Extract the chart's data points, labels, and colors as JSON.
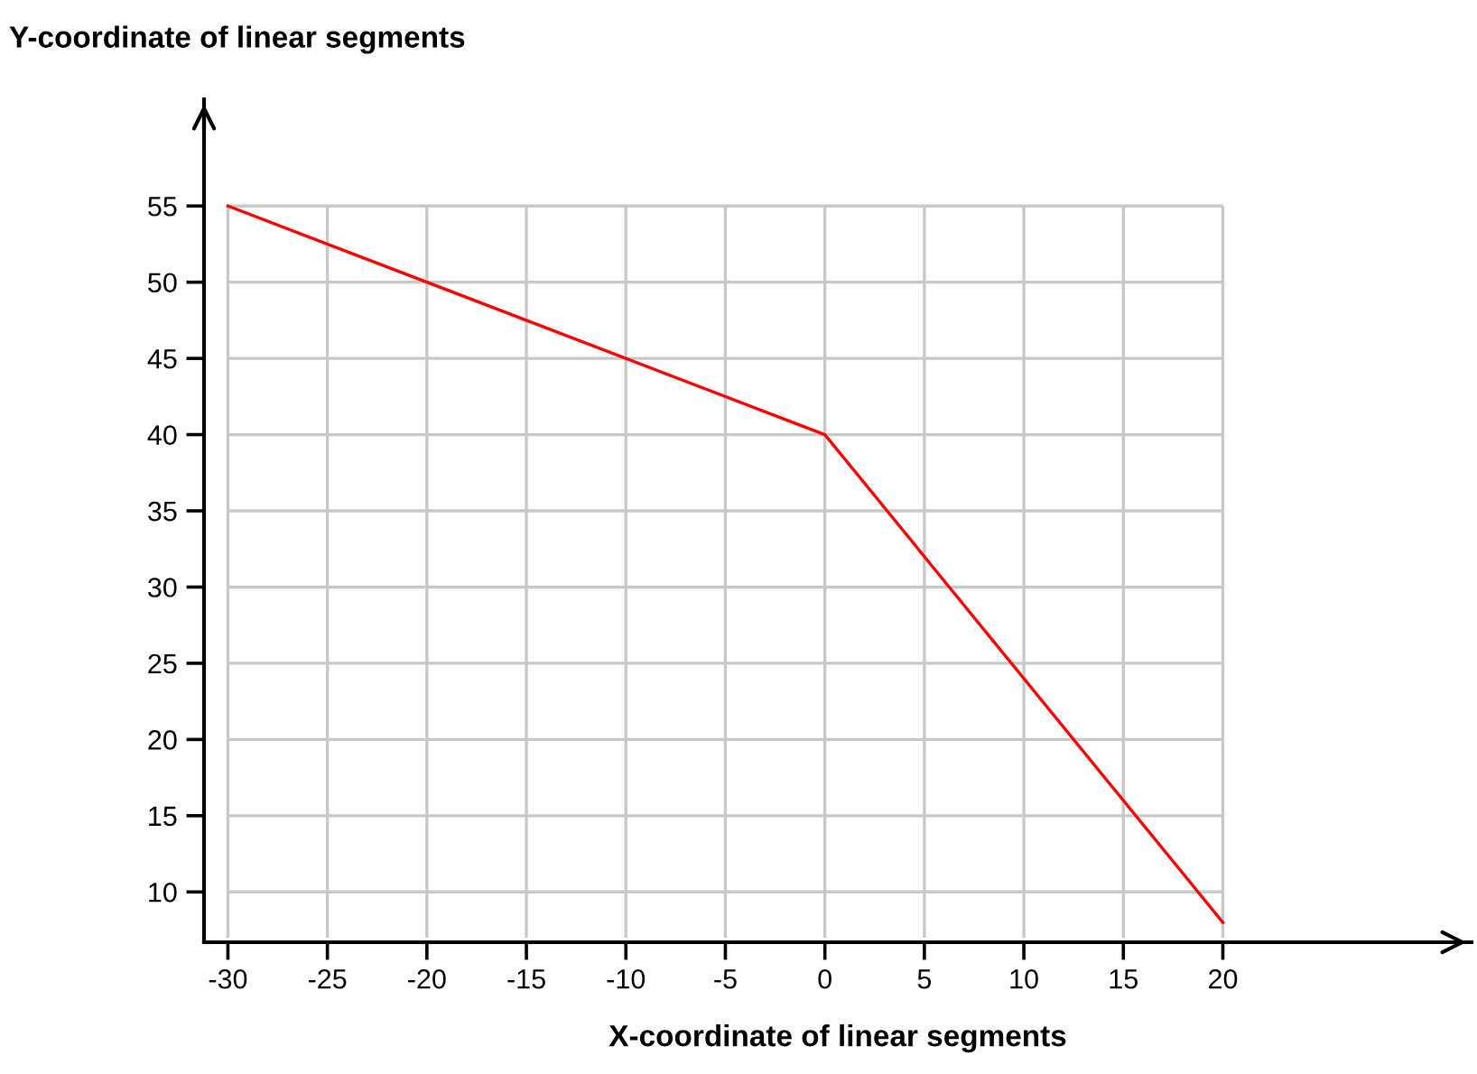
{
  "chart_data": {
    "type": "line",
    "xlabel": "X-coordinate of linear segments",
    "ylabel": "Y-coordinate of linear segments",
    "x": [
      -30,
      0,
      20
    ],
    "series": [
      {
        "color": "#ff0000",
        "values": [
          55,
          40,
          8
        ]
      }
    ],
    "xlim": [
      -31.2,
      32.5
    ],
    "ylim": [
      6.7,
      62
    ],
    "xticks": [
      -30,
      -25,
      -20,
      -15,
      -10,
      -5,
      0,
      5,
      10,
      15,
      20
    ],
    "yticks": [
      10,
      15,
      20,
      25,
      30,
      35,
      40,
      45,
      50,
      55
    ],
    "grid": true,
    "legend": false,
    "marker": "none",
    "line_style": "solid"
  }
}
